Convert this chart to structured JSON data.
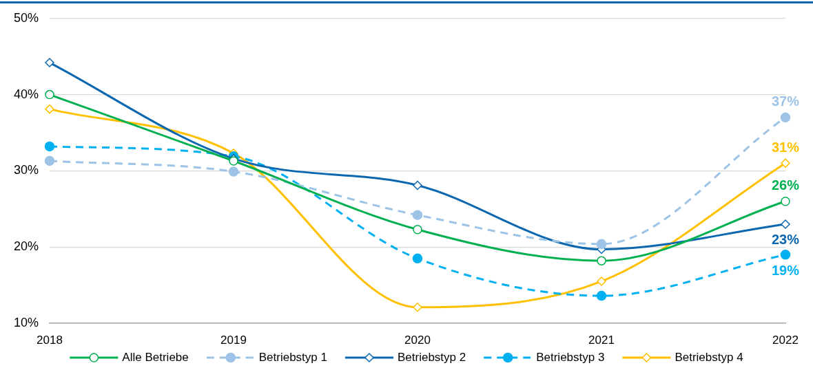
{
  "chart_data": {
    "type": "line",
    "categories": [
      "2018",
      "2019",
      "2020",
      "2021",
      "2022"
    ],
    "series": [
      {
        "name": "Alle Betriebe",
        "color": "#00b050",
        "values": [
          40,
          31.3,
          22.3,
          18.2,
          26
        ],
        "marker": "circle",
        "line_style": "solid",
        "value_labels": [
          null,
          null,
          null,
          null,
          "26%"
        ]
      },
      {
        "name": "Betriebstyp 1",
        "color": "#9dc3e6",
        "values": [
          31.3,
          29.9,
          24.2,
          20.4,
          37
        ],
        "marker": "circle",
        "line_style": "dashed",
        "value_labels": [
          null,
          null,
          null,
          null,
          "37%"
        ]
      },
      {
        "name": "Betriebstyp 2",
        "color": "#0a67b0",
        "values": [
          44.2,
          31.6,
          28.1,
          19.7,
          23
        ],
        "marker": "diamond",
        "line_style": "solid",
        "value_labels": [
          null,
          null,
          null,
          null,
          "23%"
        ]
      },
      {
        "name": "Betriebstyp 3",
        "color": "#00b0f0",
        "values": [
          33.2,
          31.9,
          18.5,
          13.6,
          19
        ],
        "marker": "circle",
        "line_style": "dashed",
        "value_labels": [
          null,
          null,
          null,
          null,
          "19%"
        ]
      },
      {
        "name": "Betriebstyp 4",
        "color": "#ffc000",
        "values": [
          38.1,
          32.3,
          12.1,
          15.5,
          31
        ],
        "marker": "diamond",
        "line_style": "solid",
        "value_labels": [
          null,
          null,
          null,
          null,
          "31%"
        ]
      }
    ],
    "ylim": [
      10,
      50
    ],
    "yticks": [
      {
        "value": 10,
        "label": "10%"
      },
      {
        "value": 20,
        "label": "20%"
      },
      {
        "value": 30,
        "label": "30%"
      },
      {
        "value": 40,
        "label": "40%"
      },
      {
        "value": 50,
        "label": "50%"
      }
    ],
    "grid": "y",
    "legend": "bottom"
  }
}
